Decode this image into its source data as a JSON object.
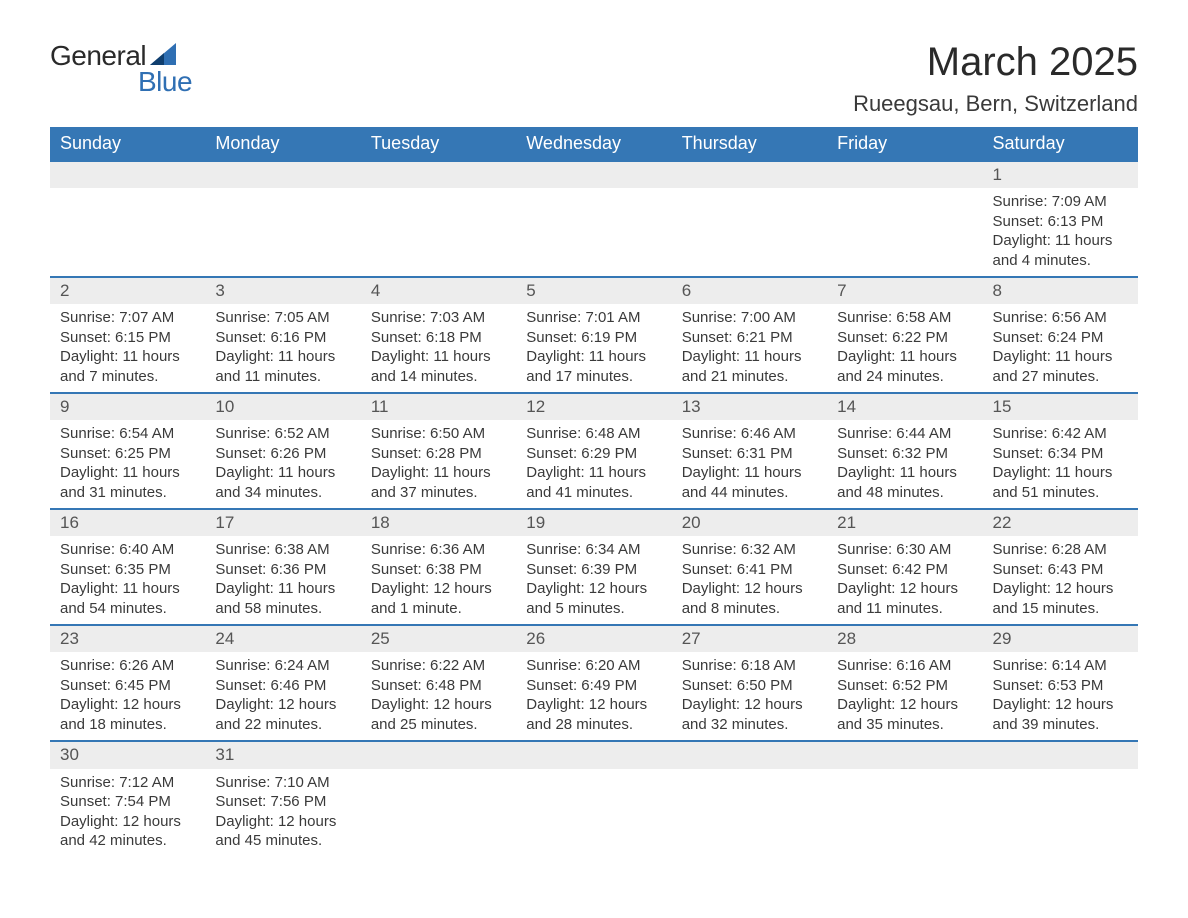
{
  "logo": {
    "word1": "General",
    "word2": "Blue"
  },
  "title": "March 2025",
  "location": "Rueegsau, Bern, Switzerland",
  "colors": {
    "header_bg": "#3577b5",
    "header_text": "#ffffff",
    "daynum_bg": "#ededed",
    "text": "#3a3a3a",
    "rule": "#3577b5",
    "logo_blue": "#2f6fb3"
  },
  "day_headers": [
    "Sunday",
    "Monday",
    "Tuesday",
    "Wednesday",
    "Thursday",
    "Friday",
    "Saturday"
  ],
  "weeks": [
    [
      null,
      null,
      null,
      null,
      null,
      null,
      {
        "n": "1",
        "sr": "Sunrise: 7:09 AM",
        "ss": "Sunset: 6:13 PM",
        "dl": "Daylight: 11 hours and 4 minutes."
      }
    ],
    [
      {
        "n": "2",
        "sr": "Sunrise: 7:07 AM",
        "ss": "Sunset: 6:15 PM",
        "dl": "Daylight: 11 hours and 7 minutes."
      },
      {
        "n": "3",
        "sr": "Sunrise: 7:05 AM",
        "ss": "Sunset: 6:16 PM",
        "dl": "Daylight: 11 hours and 11 minutes."
      },
      {
        "n": "4",
        "sr": "Sunrise: 7:03 AM",
        "ss": "Sunset: 6:18 PM",
        "dl": "Daylight: 11 hours and 14 minutes."
      },
      {
        "n": "5",
        "sr": "Sunrise: 7:01 AM",
        "ss": "Sunset: 6:19 PM",
        "dl": "Daylight: 11 hours and 17 minutes."
      },
      {
        "n": "6",
        "sr": "Sunrise: 7:00 AM",
        "ss": "Sunset: 6:21 PM",
        "dl": "Daylight: 11 hours and 21 minutes."
      },
      {
        "n": "7",
        "sr": "Sunrise: 6:58 AM",
        "ss": "Sunset: 6:22 PM",
        "dl": "Daylight: 11 hours and 24 minutes."
      },
      {
        "n": "8",
        "sr": "Sunrise: 6:56 AM",
        "ss": "Sunset: 6:24 PM",
        "dl": "Daylight: 11 hours and 27 minutes."
      }
    ],
    [
      {
        "n": "9",
        "sr": "Sunrise: 6:54 AM",
        "ss": "Sunset: 6:25 PM",
        "dl": "Daylight: 11 hours and 31 minutes."
      },
      {
        "n": "10",
        "sr": "Sunrise: 6:52 AM",
        "ss": "Sunset: 6:26 PM",
        "dl": "Daylight: 11 hours and 34 minutes."
      },
      {
        "n": "11",
        "sr": "Sunrise: 6:50 AM",
        "ss": "Sunset: 6:28 PM",
        "dl": "Daylight: 11 hours and 37 minutes."
      },
      {
        "n": "12",
        "sr": "Sunrise: 6:48 AM",
        "ss": "Sunset: 6:29 PM",
        "dl": "Daylight: 11 hours and 41 minutes."
      },
      {
        "n": "13",
        "sr": "Sunrise: 6:46 AM",
        "ss": "Sunset: 6:31 PM",
        "dl": "Daylight: 11 hours and 44 minutes."
      },
      {
        "n": "14",
        "sr": "Sunrise: 6:44 AM",
        "ss": "Sunset: 6:32 PM",
        "dl": "Daylight: 11 hours and 48 minutes."
      },
      {
        "n": "15",
        "sr": "Sunrise: 6:42 AM",
        "ss": "Sunset: 6:34 PM",
        "dl": "Daylight: 11 hours and 51 minutes."
      }
    ],
    [
      {
        "n": "16",
        "sr": "Sunrise: 6:40 AM",
        "ss": "Sunset: 6:35 PM",
        "dl": "Daylight: 11 hours and 54 minutes."
      },
      {
        "n": "17",
        "sr": "Sunrise: 6:38 AM",
        "ss": "Sunset: 6:36 PM",
        "dl": "Daylight: 11 hours and 58 minutes."
      },
      {
        "n": "18",
        "sr": "Sunrise: 6:36 AM",
        "ss": "Sunset: 6:38 PM",
        "dl": "Daylight: 12 hours and 1 minute."
      },
      {
        "n": "19",
        "sr": "Sunrise: 6:34 AM",
        "ss": "Sunset: 6:39 PM",
        "dl": "Daylight: 12 hours and 5 minutes."
      },
      {
        "n": "20",
        "sr": "Sunrise: 6:32 AM",
        "ss": "Sunset: 6:41 PM",
        "dl": "Daylight: 12 hours and 8 minutes."
      },
      {
        "n": "21",
        "sr": "Sunrise: 6:30 AM",
        "ss": "Sunset: 6:42 PM",
        "dl": "Daylight: 12 hours and 11 minutes."
      },
      {
        "n": "22",
        "sr": "Sunrise: 6:28 AM",
        "ss": "Sunset: 6:43 PM",
        "dl": "Daylight: 12 hours and 15 minutes."
      }
    ],
    [
      {
        "n": "23",
        "sr": "Sunrise: 6:26 AM",
        "ss": "Sunset: 6:45 PM",
        "dl": "Daylight: 12 hours and 18 minutes."
      },
      {
        "n": "24",
        "sr": "Sunrise: 6:24 AM",
        "ss": "Sunset: 6:46 PM",
        "dl": "Daylight: 12 hours and 22 minutes."
      },
      {
        "n": "25",
        "sr": "Sunrise: 6:22 AM",
        "ss": "Sunset: 6:48 PM",
        "dl": "Daylight: 12 hours and 25 minutes."
      },
      {
        "n": "26",
        "sr": "Sunrise: 6:20 AM",
        "ss": "Sunset: 6:49 PM",
        "dl": "Daylight: 12 hours and 28 minutes."
      },
      {
        "n": "27",
        "sr": "Sunrise: 6:18 AM",
        "ss": "Sunset: 6:50 PM",
        "dl": "Daylight: 12 hours and 32 minutes."
      },
      {
        "n": "28",
        "sr": "Sunrise: 6:16 AM",
        "ss": "Sunset: 6:52 PM",
        "dl": "Daylight: 12 hours and 35 minutes."
      },
      {
        "n": "29",
        "sr": "Sunrise: 6:14 AM",
        "ss": "Sunset: 6:53 PM",
        "dl": "Daylight: 12 hours and 39 minutes."
      }
    ],
    [
      {
        "n": "30",
        "sr": "Sunrise: 7:12 AM",
        "ss": "Sunset: 7:54 PM",
        "dl": "Daylight: 12 hours and 42 minutes."
      },
      {
        "n": "31",
        "sr": "Sunrise: 7:10 AM",
        "ss": "Sunset: 7:56 PM",
        "dl": "Daylight: 12 hours and 45 minutes."
      },
      null,
      null,
      null,
      null,
      null
    ]
  ]
}
